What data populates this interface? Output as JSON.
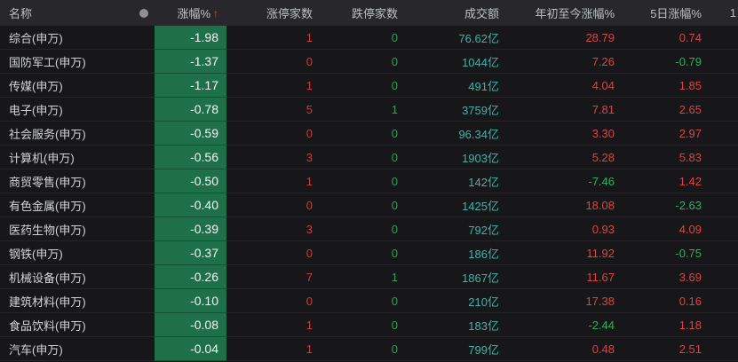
{
  "colors": {
    "background": "#131316",
    "header_bg": "#28282c",
    "row_bg": "#17171a",
    "change_cell_green": "#1e7048",
    "up_red": "#d84545",
    "down_green": "#2fae62",
    "turnover_teal": "#43b2a9",
    "sort_arrow_red": "#e0523a"
  },
  "table": {
    "columns": {
      "name": "名称",
      "change": "涨幅%",
      "limit_up": "涨停家数",
      "limit_down": "跌停家数",
      "turnover": "成交额",
      "ytd": "年初至今涨幅%",
      "d5": "5日涨幅%",
      "next_partial": "1"
    },
    "sort_icon": "↑",
    "header_dot_icon": "circle-icon",
    "rows": [
      {
        "name": "综合(申万)",
        "change": "-1.98",
        "limit_up": "1",
        "limit_down": "0",
        "turnover": "76.62亿",
        "ytd": "28.79",
        "d5": "0.74"
      },
      {
        "name": "国防军工(申万)",
        "change": "-1.37",
        "limit_up": "0",
        "limit_down": "0",
        "turnover": "1044亿",
        "ytd": "7.26",
        "d5": "-0.79"
      },
      {
        "name": "传媒(申万)",
        "change": "-1.17",
        "limit_up": "1",
        "limit_down": "0",
        "turnover": "491亿",
        "ytd": "4.04",
        "d5": "1.85"
      },
      {
        "name": "电子(申万)",
        "change": "-0.78",
        "limit_up": "5",
        "limit_down": "1",
        "turnover": "3759亿",
        "ytd": "7.81",
        "d5": "2.65"
      },
      {
        "name": "社会服务(申万)",
        "change": "-0.59",
        "limit_up": "0",
        "limit_down": "0",
        "turnover": "96.34亿",
        "ytd": "3.30",
        "d5": "2.97"
      },
      {
        "name": "计算机(申万)",
        "change": "-0.56",
        "limit_up": "3",
        "limit_down": "0",
        "turnover": "1903亿",
        "ytd": "5.28",
        "d5": "5.83"
      },
      {
        "name": "商贸零售(申万)",
        "change": "-0.50",
        "limit_up": "1",
        "limit_down": "0",
        "turnover": "142亿",
        "ytd": "-7.46",
        "d5": "1.42"
      },
      {
        "name": "有色金属(申万)",
        "change": "-0.40",
        "limit_up": "0",
        "limit_down": "0",
        "turnover": "1425亿",
        "ytd": "18.08",
        "d5": "-2.63"
      },
      {
        "name": "医药生物(申万)",
        "change": "-0.39",
        "limit_up": "3",
        "limit_down": "0",
        "turnover": "792亿",
        "ytd": "0.93",
        "d5": "4.09"
      },
      {
        "name": "钢铁(申万)",
        "change": "-0.37",
        "limit_up": "0",
        "limit_down": "0",
        "turnover": "186亿",
        "ytd": "11.92",
        "d5": "-0.75"
      },
      {
        "name": "机械设备(申万)",
        "change": "-0.26",
        "limit_up": "7",
        "limit_down": "1",
        "turnover": "1867亿",
        "ytd": "11.67",
        "d5": "3.69"
      },
      {
        "name": "建筑材料(申万)",
        "change": "-0.10",
        "limit_up": "0",
        "limit_down": "0",
        "turnover": "210亿",
        "ytd": "17.38",
        "d5": "0.16"
      },
      {
        "name": "食品饮料(申万)",
        "change": "-0.08",
        "limit_up": "1",
        "limit_down": "0",
        "turnover": "183亿",
        "ytd": "-2.44",
        "d5": "1.18"
      },
      {
        "name": "汽车(申万)",
        "change": "-0.04",
        "limit_up": "1",
        "limit_down": "0",
        "turnover": "799亿",
        "ytd": "0.48",
        "d5": "2.51"
      }
    ]
  }
}
